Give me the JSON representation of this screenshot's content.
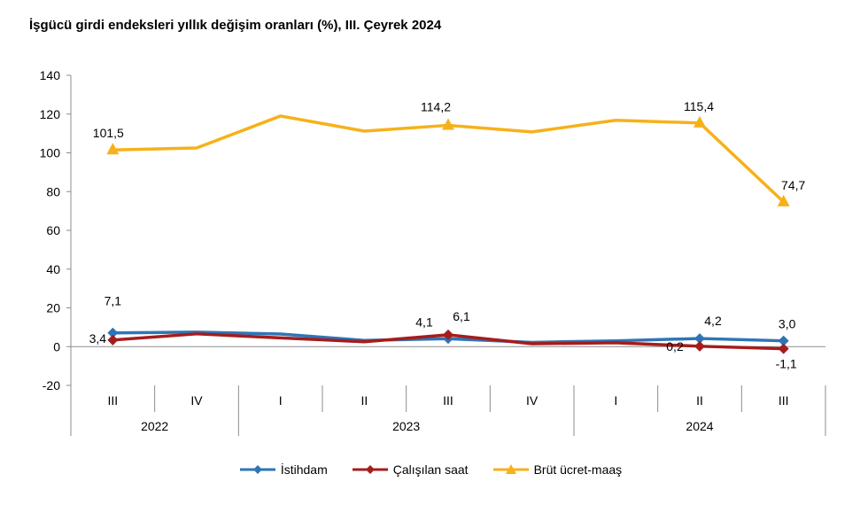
{
  "chart_data": {
    "type": "line",
    "title": "İşgücü girdi endeksleri yıllık değişim oranları (%), III. Çeyrek 2024",
    "quarters": [
      "III",
      "IV",
      "I",
      "II",
      "III",
      "IV",
      "I",
      "II",
      "III"
    ],
    "years": [
      {
        "label": "2022",
        "span": 2
      },
      {
        "label": "2023",
        "span": 4
      },
      {
        "label": "2024",
        "span": 3
      }
    ],
    "ylim": [
      -20,
      140
    ],
    "yticks": [
      "140",
      "120",
      "100",
      "80",
      "60",
      "40",
      "20",
      "0",
      "-20"
    ],
    "series": [
      {
        "name": "İstihdam",
        "color": "#2e75b6",
        "marker": "diamond",
        "values": [
          7.1,
          7.5,
          6.5,
          3.2,
          4.1,
          2.2,
          3.0,
          4.2,
          3.0
        ]
      },
      {
        "name": "Çalışılan saat",
        "color": "#a61c1c",
        "marker": "diamond",
        "values": [
          3.4,
          6.6,
          4.5,
          2.5,
          6.1,
          1.5,
          2.0,
          0.2,
          -1.1
        ]
      },
      {
        "name": "Brüt ücret-maaş",
        "color": "#f6b11a",
        "marker": "triangle",
        "values": [
          101.5,
          102.5,
          119.0,
          111.2,
          114.2,
          110.8,
          116.8,
          115.4,
          74.7
        ]
      }
    ],
    "data_labels": [
      {
        "series": 0,
        "index": 0,
        "text": "7,1"
      },
      {
        "series": 1,
        "index": 0,
        "text": "3,4"
      },
      {
        "series": 0,
        "index": 4,
        "text": "4,1"
      },
      {
        "series": 1,
        "index": 4,
        "text": "6,1"
      },
      {
        "series": 1,
        "index": 7,
        "text": "0,2"
      },
      {
        "series": 0,
        "index": 7,
        "text": "4,2"
      },
      {
        "series": 0,
        "index": 8,
        "text": "3,0"
      },
      {
        "series": 1,
        "index": 8,
        "text": "-1,1"
      },
      {
        "series": 2,
        "index": 0,
        "text": "101,5"
      },
      {
        "series": 2,
        "index": 4,
        "text": "114,2"
      },
      {
        "series": 2,
        "index": 7,
        "text": "115,4"
      },
      {
        "series": 2,
        "index": 8,
        "text": "74,7"
      }
    ],
    "legend_position": "bottom",
    "grid": false
  }
}
